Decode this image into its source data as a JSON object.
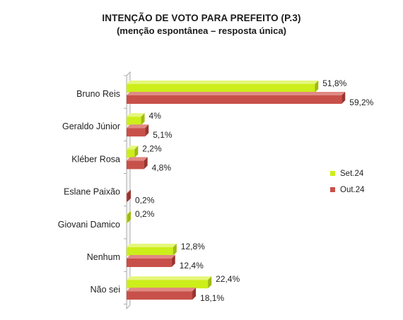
{
  "title": "INTENÇÃO DE VOTO PARA PREFEITO (P.3)",
  "subtitle": "(menção espontânea – resposta única)",
  "colors": {
    "set": "#ccee1a",
    "set_side": "#9fbc0e",
    "set_top": "#e4f77a",
    "out": "#c8504a",
    "out_side": "#9a3430",
    "out_top": "#e08a84",
    "axis": "#9a9a9a"
  },
  "chart_data": {
    "type": "bar",
    "orientation": "horizontal",
    "style": "3d",
    "categories": [
      "Bruno Reis",
      "Geraldo Júnior",
      "Kléber Rosa",
      "Eslane Paixão",
      "Giovani Damico",
      "Nenhum",
      "Não sei"
    ],
    "series": [
      {
        "name": "Set.24",
        "values": [
          51.8,
          4,
          2.2,
          0,
          0.2,
          12.8,
          22.4
        ],
        "labels": [
          "51,8%",
          "4%",
          "2,2%",
          "",
          "0,2%",
          "12,8%",
          "22,4%"
        ]
      },
      {
        "name": "Out.24",
        "values": [
          59.2,
          5.1,
          4.8,
          0.2,
          0,
          12.4,
          18.1
        ],
        "labels": [
          "59,2%",
          "5,1%",
          "4,8%",
          "0,2%",
          "",
          "12,4%",
          "18,1%"
        ]
      }
    ],
    "xlim": [
      0,
      60
    ],
    "legend_position": "right",
    "grid": false
  }
}
